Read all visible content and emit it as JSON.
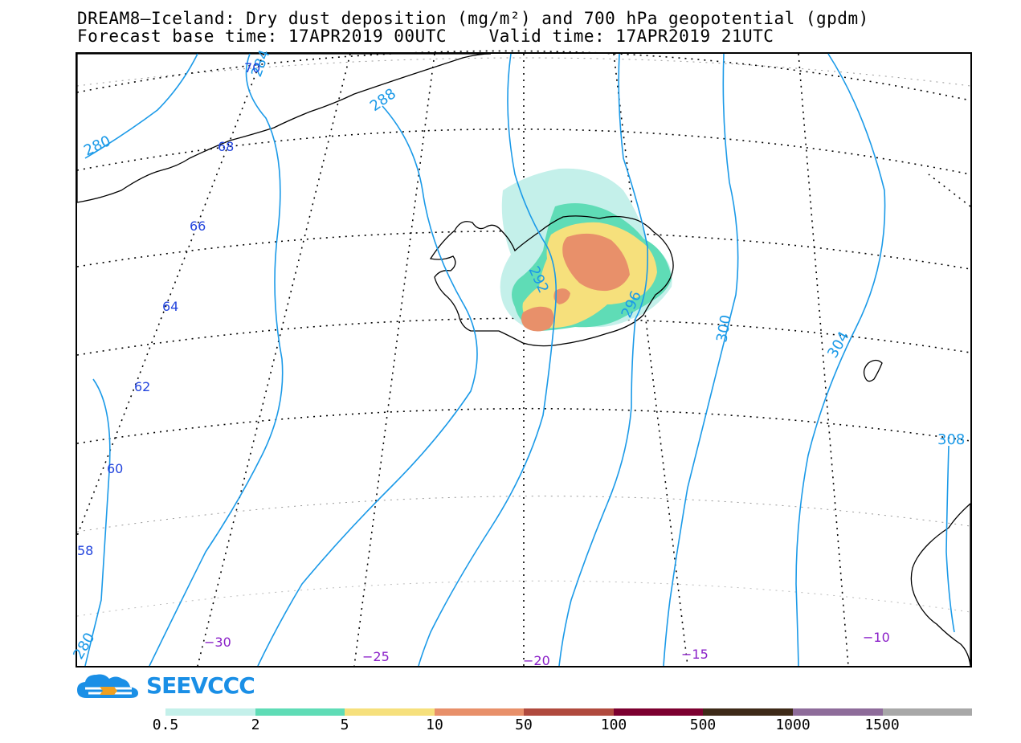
{
  "header": {
    "title_line1": "DREAM8–Iceland: Dry dust deposition (mg/m²) and 700 hPa geopotential (gpdm)",
    "title_line2": "Forecast base time: 17APR2019 00UTC    Valid time: 17APR2019 21UTC"
  },
  "map": {
    "latitude_labels": [
      "70",
      "68",
      "66",
      "64",
      "62",
      "60",
      "58"
    ],
    "longitude_labels": [
      "−30",
      "−25",
      "−20",
      "−15",
      "−10"
    ],
    "contour_labels": [
      "280",
      "284",
      "288",
      "292",
      "296",
      "300",
      "304",
      "308",
      "280"
    ],
    "contour_color": "#1b9ae8",
    "graticule_color": "#000000",
    "lat_label_color": "#2244dd",
    "lon_label_color": "#8a1fc8"
  },
  "logo": {
    "text": "SEEVCCC",
    "color": "#1a8fe6",
    "accent": "#f0a020"
  },
  "legend": {
    "ticks": [
      "0.5",
      "2",
      "5",
      "10",
      "50",
      "100",
      "500",
      "1000",
      "1500"
    ],
    "colors": [
      "#c4f0ea",
      "#5fdcb6",
      "#f6e07c",
      "#e8906a",
      "#b04a3e",
      "#7c0030",
      "#3e2a18",
      "#8e6c9a",
      "#a8a8a8"
    ]
  }
}
